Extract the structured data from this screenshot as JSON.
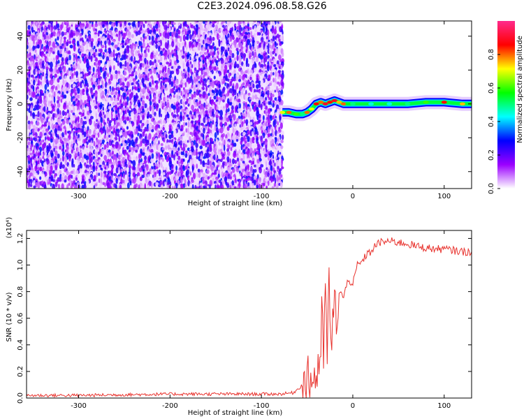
{
  "title": "C2E3.2024.096.08.58.G26",
  "chart_data": [
    {
      "type": "heatmap",
      "xlabel": "Height of straight line (km)",
      "ylabel": "Frequency (Hz)",
      "xlim": [
        -357,
        130
      ],
      "ylim": [
        -50,
        49
      ],
      "xticks": [
        -300,
        -200,
        -100,
        0,
        100
      ],
      "xtick_labels": [
        "-300",
        "-200",
        "-100",
        "0",
        "100"
      ],
      "yticks": [
        -40,
        -20,
        0,
        20,
        40
      ],
      "ytick_labels": [
        "-40",
        "-20",
        "0",
        "20",
        "40"
      ],
      "noise_region_x": [
        -357,
        -77
      ],
      "signal_trace": {
        "x": [
          -77,
          -70,
          -62,
          -55,
          -50,
          -45,
          -40,
          -35,
          -30,
          -25,
          -20,
          -15,
          -10,
          -5,
          0,
          20,
          40,
          60,
          80,
          100,
          120,
          130
        ],
        "frequency": [
          -5,
          -5,
          -6,
          -6,
          -5,
          -3,
          0,
          1,
          0,
          1,
          2,
          1,
          0,
          0,
          0,
          0,
          0,
          0,
          1,
          1,
          0,
          0
        ],
        "amplitude": [
          0.7,
          0.8,
          0.6,
          0.5,
          0.8,
          0.7,
          0.85,
          0.8,
          0.9,
          0.85,
          0.9,
          0.75,
          0.8,
          0.55,
          0.5,
          0.45,
          0.45,
          0.5,
          0.6,
          0.85,
          0.75,
          0.6
        ]
      },
      "colorbar": {
        "label": "Normalized spectral amplitude",
        "range": [
          0,
          1
        ],
        "ticks": [
          0.0,
          0.2,
          0.4,
          0.6,
          0.8
        ],
        "tick_labels": [
          "0.0",
          "0.2",
          "0.4",
          "0.6",
          "0.8"
        ],
        "colors": [
          "#ffffff",
          "#9b00ff",
          "#0000ff",
          "#00ffff",
          "#00ff00",
          "#ffff00",
          "#ff0000",
          "#ff2a8c"
        ]
      }
    },
    {
      "type": "line",
      "xlabel": "Height of straight line (km)",
      "ylabel": "SNR (10 * v/v)",
      "y_multiplier": "(x10⁴)",
      "xlim": [
        -357,
        130
      ],
      "ylim": [
        0,
        1.26
      ],
      "xticks": [
        -300,
        -200,
        -100,
        0,
        100
      ],
      "xtick_labels": [
        "-300",
        "-200",
        "-100",
        "0",
        "100"
      ],
      "yticks": [
        0,
        0.2,
        0.4,
        0.6,
        0.8,
        1.0,
        1.2
      ],
      "ytick_labels": [
        "0.0",
        "0.2",
        "0.4",
        "0.6",
        "0.8",
        "1.0",
        "1.2"
      ],
      "series": [
        {
          "color": "#e8322d",
          "x": [
            -357,
            -300,
            -250,
            -200,
            -150,
            -100,
            -80,
            -65,
            -58,
            -52,
            -48,
            -45,
            -42,
            -40,
            -38,
            -36,
            -34,
            -32,
            -30,
            -28,
            -26,
            -24,
            -22,
            -20,
            -17,
            -14,
            -10,
            -5,
            0,
            5,
            10,
            15,
            20,
            25,
            30,
            40,
            50,
            60,
            70,
            80,
            90,
            100,
            110,
            120,
            130
          ],
          "y": [
            0.02,
            0.02,
            0.025,
            0.03,
            0.03,
            0.03,
            0.03,
            0.04,
            0.08,
            0.12,
            0.15,
            0.12,
            0.2,
            0.1,
            0.3,
            0.15,
            0.6,
            0.35,
            0.85,
            0.2,
            1.05,
            0.3,
            0.55,
            0.7,
            0.6,
            0.8,
            0.75,
            0.9,
            0.85,
            1.0,
            1.02,
            1.08,
            1.1,
            1.15,
            1.17,
            1.18,
            1.17,
            1.16,
            1.14,
            1.13,
            1.12,
            1.12,
            1.11,
            1.1,
            1.1
          ]
        }
      ]
    }
  ]
}
